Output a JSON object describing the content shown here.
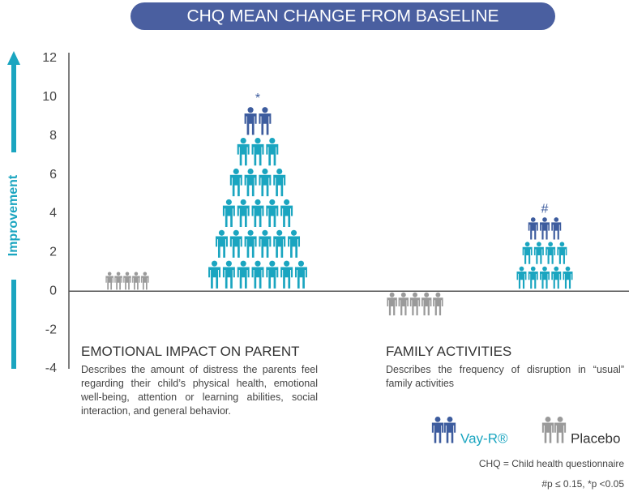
{
  "chart_data": {
    "type": "bar",
    "title": "CHQ MEAN CHANGE FROM BASELINE",
    "ylabel": "Improvement",
    "categories": [
      "EMOTIONAL IMPACT ON PARENT",
      "FAMILY ACTIVITIES"
    ],
    "descriptions": [
      "Describes the amount of distress the parents feel regarding their child’s physical health, emotional well-being, attention or learning abilities, social interaction, and general behavior.",
      "Describes the frequency of disruption in “usual” family activities"
    ],
    "series": [
      {
        "name": "Placebo",
        "color": "#9a9a9a",
        "values": [
          1.0,
          -1.3
        ]
      },
      {
        "name": "Vay-R®",
        "color": "#1aa5c0",
        "top_color": "#3d5c9e",
        "values": [
          9.5,
          3.8
        ],
        "significance": [
          "*",
          "#"
        ]
      }
    ],
    "ylim": [
      -4,
      12
    ],
    "yticks": [
      -4,
      -2,
      0,
      2,
      4,
      6,
      8,
      10,
      12
    ],
    "footnotes": [
      "CHQ = Child health questionnaire",
      "#p ≤ 0.15, *p <0.05"
    ]
  }
}
